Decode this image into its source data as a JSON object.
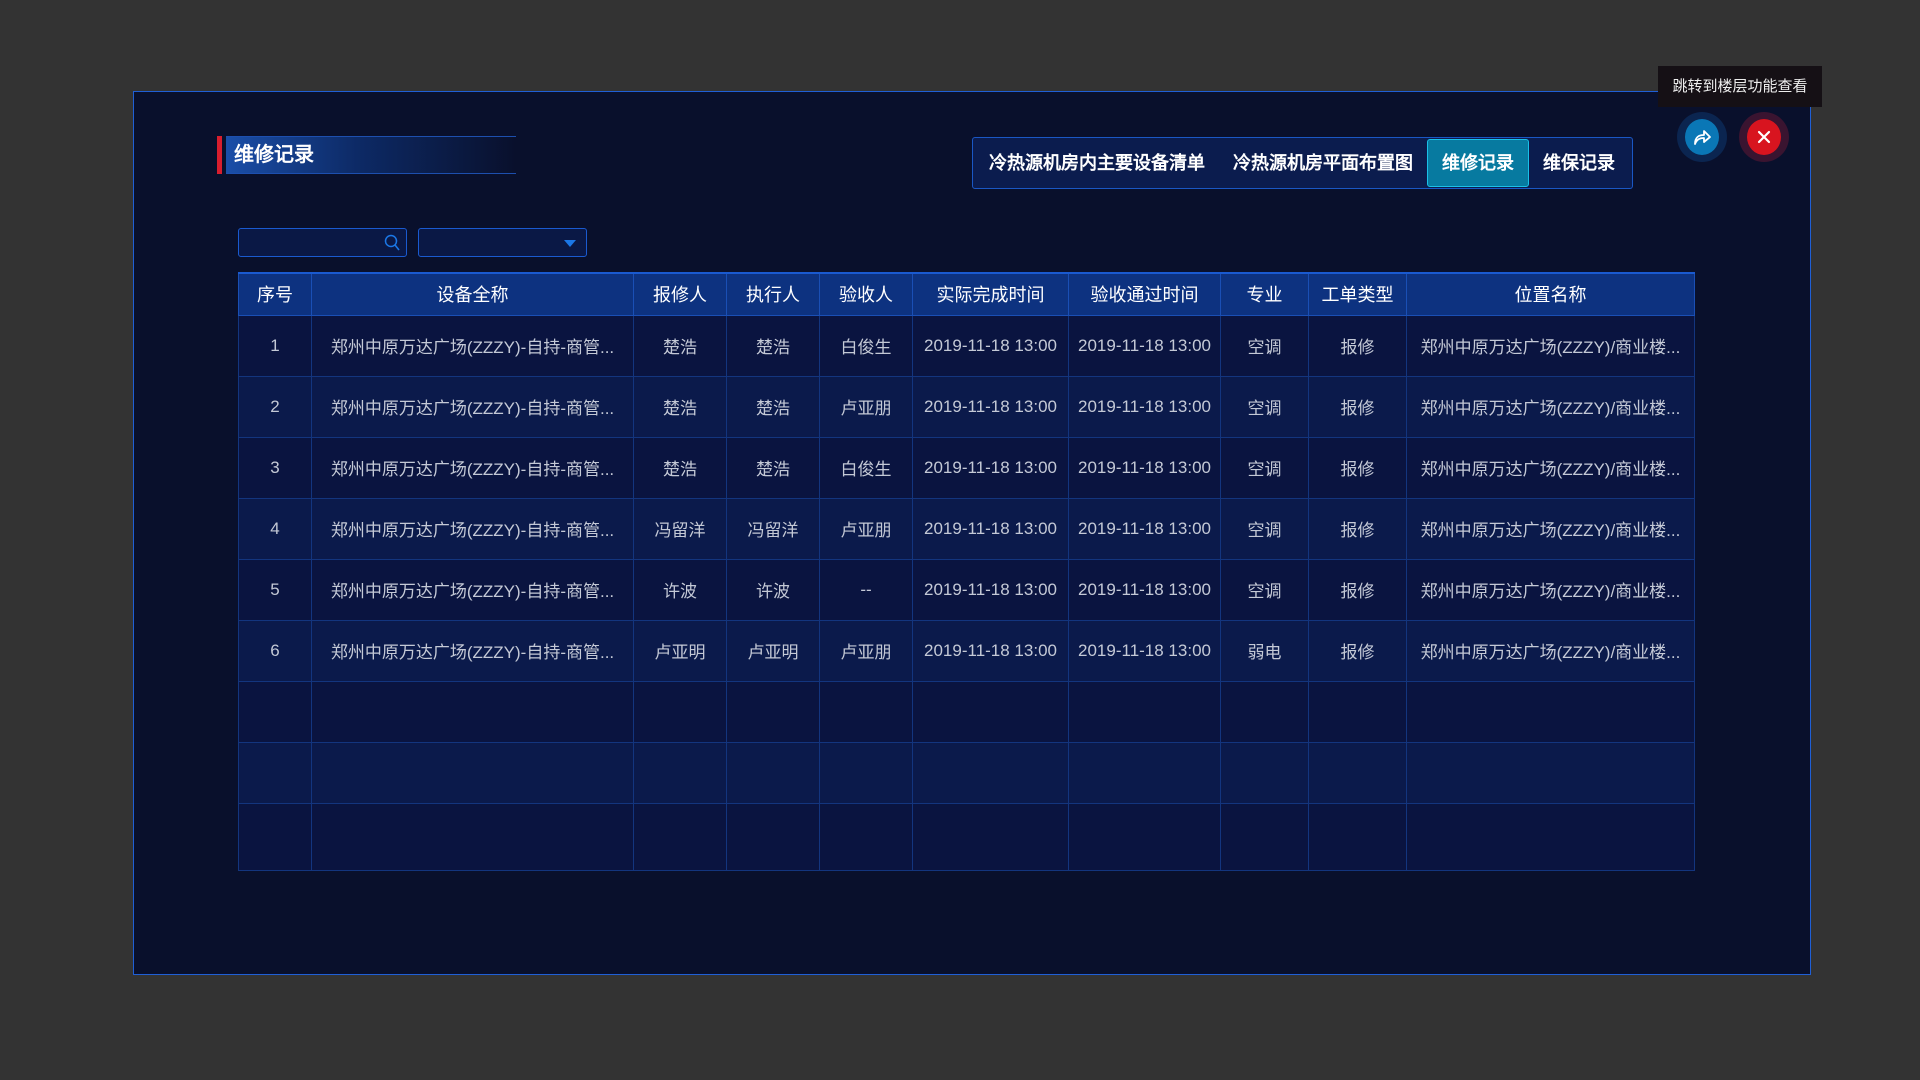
{
  "header": {
    "title": "维修记录"
  },
  "tabs": [
    {
      "label": "冷热源机房内主要设备清单",
      "active": false
    },
    {
      "label": "冷热源机房平面布置图",
      "active": false
    },
    {
      "label": "维修记录",
      "active": true
    },
    {
      "label": "维保记录",
      "active": false
    }
  ],
  "tooltip": "跳转到楼层功能查看",
  "actions": {
    "share_icon": "share-arrow-icon",
    "close_icon": "close-x-icon",
    "share_color": "#0a77b6",
    "close_color": "#d8141f"
  },
  "filters": {
    "search_value": "",
    "search_placeholder": "",
    "select_value": ""
  },
  "table": {
    "columns": [
      "序号",
      "设备全称",
      "报修人",
      "执行人",
      "验收人",
      "实际完成时间",
      "验收通过时间",
      "专业",
      "工单类型",
      "位置名称"
    ],
    "rows": [
      [
        "1",
        "郑州中原万达广场(ZZZY)-自持-商管...",
        "楚浩",
        "楚浩",
        "白俊生",
        "2019-11-18 13:00",
        "2019-11-18 13:00",
        "空调",
        "报修",
        "郑州中原万达广场(ZZZY)/商业楼..."
      ],
      [
        "2",
        "郑州中原万达广场(ZZZY)-自持-商管...",
        "楚浩",
        "楚浩",
        "卢亚朋",
        "2019-11-18 13:00",
        "2019-11-18 13:00",
        "空调",
        "报修",
        "郑州中原万达广场(ZZZY)/商业楼..."
      ],
      [
        "3",
        "郑州中原万达广场(ZZZY)-自持-商管...",
        "楚浩",
        "楚浩",
        "白俊生",
        "2019-11-18 13:00",
        "2019-11-18 13:00",
        "空调",
        "报修",
        "郑州中原万达广场(ZZZY)/商业楼..."
      ],
      [
        "4",
        "郑州中原万达广场(ZZZY)-自持-商管...",
        "冯留洋",
        "冯留洋",
        "卢亚朋",
        "2019-11-18 13:00",
        "2019-11-18 13:00",
        "空调",
        "报修",
        "郑州中原万达广场(ZZZY)/商业楼..."
      ],
      [
        "5",
        "郑州中原万达广场(ZZZY)-自持-商管...",
        "许波",
        "许波",
        "--",
        "2019-11-18 13:00",
        "2019-11-18 13:00",
        "空调",
        "报修",
        "郑州中原万达广场(ZZZY)/商业楼..."
      ],
      [
        "6",
        "郑州中原万达广场(ZZZY)-自持-商管...",
        "卢亚明",
        "卢亚明",
        "卢亚朋",
        "2019-11-18 13:00",
        "2019-11-18 13:00",
        "弱电",
        "报修",
        "郑州中原万达广场(ZZZY)/商业楼..."
      ]
    ],
    "empty_rows": 3
  }
}
